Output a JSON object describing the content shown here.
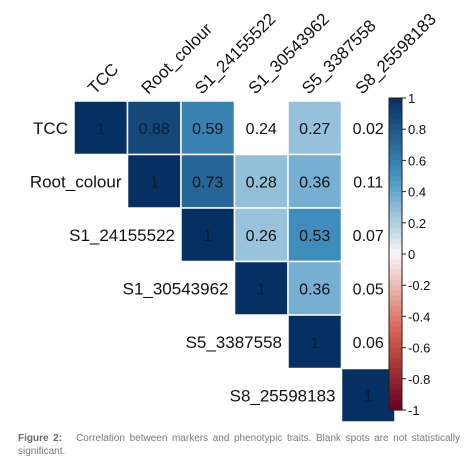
{
  "chart_data": {
    "type": "heatmap",
    "variables": [
      "TCC",
      "Root_colour",
      "S1_24155522",
      "S1_30543962",
      "S5_3387558",
      "S8_25598183"
    ],
    "cells": [
      {
        "row": 0,
        "col": 0,
        "value": 1,
        "label": "1",
        "significant": true
      },
      {
        "row": 0,
        "col": 1,
        "value": 0.88,
        "label": "0.88",
        "significant": true
      },
      {
        "row": 0,
        "col": 2,
        "value": 0.59,
        "label": "0.59",
        "significant": true
      },
      {
        "row": 0,
        "col": 3,
        "value": 0.24,
        "label": "0.24",
        "significant": false
      },
      {
        "row": 0,
        "col": 4,
        "value": 0.27,
        "label": "0.27",
        "significant": true
      },
      {
        "row": 0,
        "col": 5,
        "value": 0.02,
        "label": "0.02",
        "significant": false
      },
      {
        "row": 1,
        "col": 1,
        "value": 1,
        "label": "1",
        "significant": true
      },
      {
        "row": 1,
        "col": 2,
        "value": 0.73,
        "label": "0.73",
        "significant": true
      },
      {
        "row": 1,
        "col": 3,
        "value": 0.28,
        "label": "0.28",
        "significant": true
      },
      {
        "row": 1,
        "col": 4,
        "value": 0.36,
        "label": "0.36",
        "significant": true
      },
      {
        "row": 1,
        "col": 5,
        "value": 0.11,
        "label": "0.11",
        "significant": false
      },
      {
        "row": 2,
        "col": 2,
        "value": 1,
        "label": "1",
        "significant": true
      },
      {
        "row": 2,
        "col": 3,
        "value": 0.26,
        "label": "0.26",
        "significant": true
      },
      {
        "row": 2,
        "col": 4,
        "value": 0.53,
        "label": "0.53",
        "significant": true
      },
      {
        "row": 2,
        "col": 5,
        "value": 0.07,
        "label": "0.07",
        "significant": false
      },
      {
        "row": 3,
        "col": 3,
        "value": 1,
        "label": "1",
        "significant": true
      },
      {
        "row": 3,
        "col": 4,
        "value": 0.36,
        "label": "0.36",
        "significant": true
      },
      {
        "row": 3,
        "col": 5,
        "value": 0.05,
        "label": "0.05",
        "significant": false
      },
      {
        "row": 4,
        "col": 4,
        "value": 1,
        "label": "1",
        "significant": true
      },
      {
        "row": 4,
        "col": 5,
        "value": 0.06,
        "label": "0.06",
        "significant": false
      },
      {
        "row": 5,
        "col": 5,
        "value": 1,
        "label": "1",
        "significant": true
      }
    ],
    "colorbar": {
      "range": [
        -1,
        1
      ],
      "ticks": [
        "1",
        "0.8",
        "0.6",
        "0.4",
        "0.2",
        "0",
        "-0.2",
        "-0.4",
        "-0.6",
        "-0.8",
        "-1"
      ]
    },
    "color_scale": {
      "high": "#053061",
      "mid_high": "#4393c3",
      "zero": "#f7f7f7",
      "mid_low": "#d6604d",
      "low": "#67001f"
    },
    "layout_type": "upper-triangle"
  },
  "caption": {
    "label": "Figure 2:",
    "text": "Correlation between markers and phenotypic traits. Blank spots are not statistically significant."
  }
}
